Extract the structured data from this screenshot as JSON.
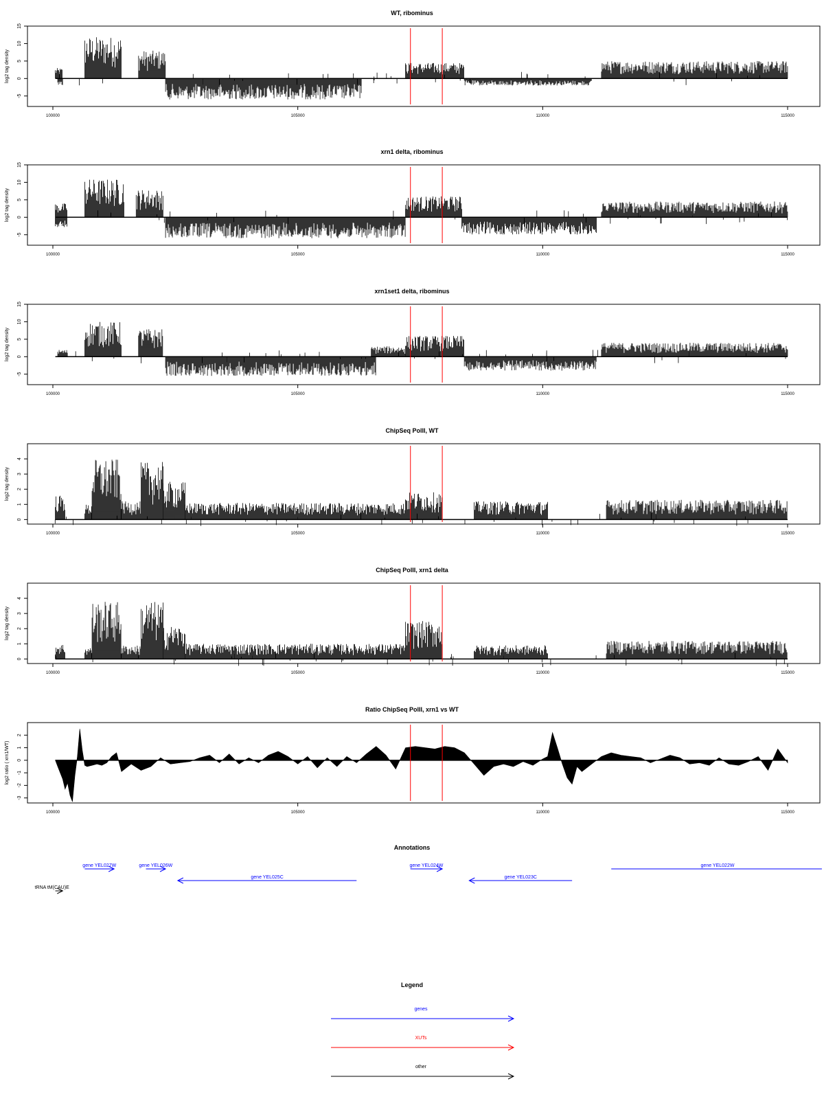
{
  "figure": {
    "x_range": [
      100000,
      115000
    ],
    "x_ticks": [
      100000,
      105000,
      110000,
      115000
    ],
    "x_tick_labels": [
      "100000",
      "105000",
      "110000",
      "115000"
    ],
    "red_marker_positions": [
      107300,
      107950
    ],
    "colors": {
      "signal": "#000000",
      "marker": "#ff0000",
      "gene": "#0000ff",
      "xut": "#ff0000",
      "other": "#000000",
      "axis": "#000000"
    }
  },
  "chart_data": [
    {
      "type": "bar",
      "title": "WT, ribominus",
      "ylabel": "log2 tag density",
      "ylim": [
        -8,
        15
      ],
      "yticks": [
        -5,
        0,
        5,
        10,
        15
      ],
      "segments": [
        {
          "start": 100050,
          "end": 100200,
          "amp": 3
        },
        {
          "start": 100100,
          "end": 100200,
          "amp": -2
        },
        {
          "start": 100650,
          "end": 101400,
          "amp": 12
        },
        {
          "start": 101750,
          "end": 102300,
          "amp": 8
        },
        {
          "start": 102300,
          "end": 106300,
          "amp": -6
        },
        {
          "start": 107200,
          "end": 108400,
          "amp": 4.5
        },
        {
          "start": 108400,
          "end": 111000,
          "amp": -2
        },
        {
          "start": 111200,
          "end": 115000,
          "amp": 5
        }
      ]
    },
    {
      "type": "bar",
      "title": "xrn1 delta, ribominus",
      "ylabel": "log2 tag density",
      "ylim": [
        -8,
        15
      ],
      "yticks": [
        -5,
        0,
        5,
        10,
        15
      ],
      "segments": [
        {
          "start": 100050,
          "end": 100300,
          "amp": 4
        },
        {
          "start": 100050,
          "end": 100300,
          "amp": -3
        },
        {
          "start": 100650,
          "end": 101450,
          "amp": 11
        },
        {
          "start": 101700,
          "end": 102250,
          "amp": 8
        },
        {
          "start": 102300,
          "end": 107200,
          "amp": -6
        },
        {
          "start": 107200,
          "end": 108350,
          "amp": 6
        },
        {
          "start": 108350,
          "end": 111100,
          "amp": -5
        },
        {
          "start": 111200,
          "end": 115000,
          "amp": 4.5
        }
      ]
    },
    {
      "type": "bar",
      "title": "xrn1set1 delta, ribominus",
      "ylabel": "log2 tag density",
      "ylim": [
        -8,
        15
      ],
      "yticks": [
        -5,
        0,
        5,
        10,
        15
      ],
      "segments": [
        {
          "start": 100100,
          "end": 100300,
          "amp": 2
        },
        {
          "start": 100650,
          "end": 101400,
          "amp": 10
        },
        {
          "start": 101750,
          "end": 102250,
          "amp": 8
        },
        {
          "start": 102300,
          "end": 106600,
          "amp": -5.5
        },
        {
          "start": 106500,
          "end": 107200,
          "amp": 3
        },
        {
          "start": 107200,
          "end": 108400,
          "amp": 6
        },
        {
          "start": 108400,
          "end": 111100,
          "amp": -4
        },
        {
          "start": 111200,
          "end": 115000,
          "amp": 4
        }
      ]
    },
    {
      "type": "bar",
      "title": "ChipSeq PolII, WT",
      "ylabel": "log2 tag density",
      "ylim": [
        -0.3,
        5
      ],
      "yticks": [
        0,
        1,
        2,
        3,
        4
      ],
      "segments": [
        {
          "start": 100050,
          "end": 100250,
          "amp": 1.6
        },
        {
          "start": 100650,
          "end": 100800,
          "amp": 1
        },
        {
          "start": 100800,
          "end": 101400,
          "amp": 4
        },
        {
          "start": 101400,
          "end": 101800,
          "amp": 1.2
        },
        {
          "start": 101800,
          "end": 102250,
          "amp": 3.8
        },
        {
          "start": 102250,
          "end": 102700,
          "amp": 2.5
        },
        {
          "start": 102700,
          "end": 107200,
          "amp": 1.1
        },
        {
          "start": 107200,
          "end": 107950,
          "amp": 1.8
        },
        {
          "start": 108600,
          "end": 110100,
          "amp": 1.2
        },
        {
          "start": 111300,
          "end": 115000,
          "amp": 1.3
        }
      ]
    },
    {
      "type": "bar",
      "title": "ChipSeq PolII, xrn1 delta",
      "ylabel": "log2 tag density",
      "ylim": [
        -0.3,
        5
      ],
      "yticks": [
        0,
        1,
        2,
        3,
        4
      ],
      "segments": [
        {
          "start": 100050,
          "end": 100250,
          "amp": 1
        },
        {
          "start": 100650,
          "end": 100800,
          "amp": 0.8
        },
        {
          "start": 100800,
          "end": 101400,
          "amp": 3.8
        },
        {
          "start": 101400,
          "end": 101800,
          "amp": 0.9
        },
        {
          "start": 101800,
          "end": 102250,
          "amp": 3.8
        },
        {
          "start": 102250,
          "end": 102700,
          "amp": 2.2
        },
        {
          "start": 102700,
          "end": 107200,
          "amp": 1
        },
        {
          "start": 107200,
          "end": 107950,
          "amp": 2.5
        },
        {
          "start": 108600,
          "end": 110100,
          "amp": 0.9
        },
        {
          "start": 111300,
          "end": 115000,
          "amp": 1.2
        }
      ]
    },
    {
      "type": "area",
      "title": "Ratio ChipSeq PolII, xrn1 vs WT",
      "ylabel": "log2 ratio ( xrn1/WT)",
      "ylim": [
        -3.4,
        3
      ],
      "yticks": [
        -3,
        -2,
        -1,
        0,
        1,
        2
      ],
      "x": [
        100050,
        100100,
        100200,
        100250,
        100300,
        100350,
        100400,
        100450,
        100500,
        100550,
        100600,
        100650,
        100700,
        100800,
        100900,
        101000,
        101100,
        101200,
        101300,
        101400,
        101500,
        101600,
        101800,
        102000,
        102200,
        102400,
        102600,
        102800,
        103000,
        103200,
        103400,
        103600,
        103800,
        104000,
        104200,
        104400,
        104600,
        104800,
        105000,
        105200,
        105400,
        105600,
        105800,
        106000,
        106200,
        106400,
        106600,
        106800,
        107000,
        107200,
        107400,
        107600,
        107800,
        108000,
        108200,
        108400,
        108600,
        108800,
        109000,
        109200,
        109400,
        109600,
        109800,
        110000,
        110100,
        110200,
        110300,
        110400,
        110500,
        110600,
        110700,
        110800,
        111000,
        111200,
        111400,
        111600,
        111800,
        112000,
        112200,
        112400,
        112600,
        112800,
        113000,
        113200,
        113400,
        113600,
        113800,
        114000,
        114200,
        114400,
        114600,
        114800,
        115000
      ],
      "y": [
        0,
        -0.5,
        -1.5,
        -2.3,
        -1.8,
        -2.8,
        -3.3,
        -1.2,
        0.3,
        2.5,
        0.8,
        -0.4,
        -0.5,
        -0.4,
        -0.3,
        -0.4,
        -0.2,
        0.3,
        0.6,
        -0.9,
        -0.6,
        -0.3,
        -0.8,
        -0.5,
        0.2,
        -0.3,
        -0.2,
        -0.1,
        0.2,
        0.4,
        -0.2,
        0.5,
        -0.3,
        0.2,
        -0.2,
        0.4,
        0.7,
        0.3,
        -0.3,
        0.3,
        -0.6,
        0.2,
        -0.5,
        0.3,
        -0.2,
        0.5,
        1.1,
        0.4,
        -0.7,
        1,
        1.1,
        1,
        0.9,
        1.1,
        1,
        0.6,
        -0.3,
        -1.2,
        -0.5,
        -0.3,
        -0.5,
        -0.1,
        -0.4,
        0.1,
        0.3,
        2.2,
        1,
        -0.3,
        -1.4,
        -1.9,
        -0.5,
        -0.9,
        -0.3,
        0.3,
        0.6,
        0.4,
        0.3,
        0.2,
        -0.2,
        0.1,
        0.4,
        0.2,
        -0.3,
        -0.2,
        -0.4,
        0.2,
        -0.3,
        -0.4,
        -0.1,
        0.3,
        -0.8,
        0.9,
        -0.2
      ]
    }
  ],
  "annotations": {
    "title": "Annotations",
    "features": [
      {
        "label": "gene YEL027W",
        "start": 100650,
        "end": 101250,
        "strand": "+",
        "row": 0,
        "color": "#0000ff"
      },
      {
        "label": "gene YEL026W",
        "start": 101900,
        "end": 102300,
        "strand": "+",
        "row": 0,
        "color": "#0000ff"
      },
      {
        "label": "gene YEL025C",
        "start": 102550,
        "end": 106200,
        "strand": "-",
        "row": 1,
        "color": "#0000ff"
      },
      {
        "label": "gene YEL024W",
        "start": 107300,
        "end": 107950,
        "strand": "+",
        "row": 0,
        "color": "#0000ff"
      },
      {
        "label": "gene YEL023C",
        "start": 108500,
        "end": 110600,
        "strand": "-",
        "row": 1,
        "color": "#0000ff"
      },
      {
        "label": "gene YEL022W",
        "start": 111400,
        "end": 115700,
        "strand": "+",
        "row": 0,
        "color": "#0000ff",
        "open_end": true
      },
      {
        "label": "tRNA tM(CAU)E",
        "start": 100050,
        "end": 100200,
        "strand": "+",
        "row": 2,
        "color": "#000000"
      }
    ]
  },
  "legend": {
    "title": "Legend",
    "items": [
      {
        "label": "genes",
        "color": "#0000ff"
      },
      {
        "label": "XUTs",
        "color": "#ff0000"
      },
      {
        "label": "other",
        "color": "#000000"
      }
    ]
  }
}
